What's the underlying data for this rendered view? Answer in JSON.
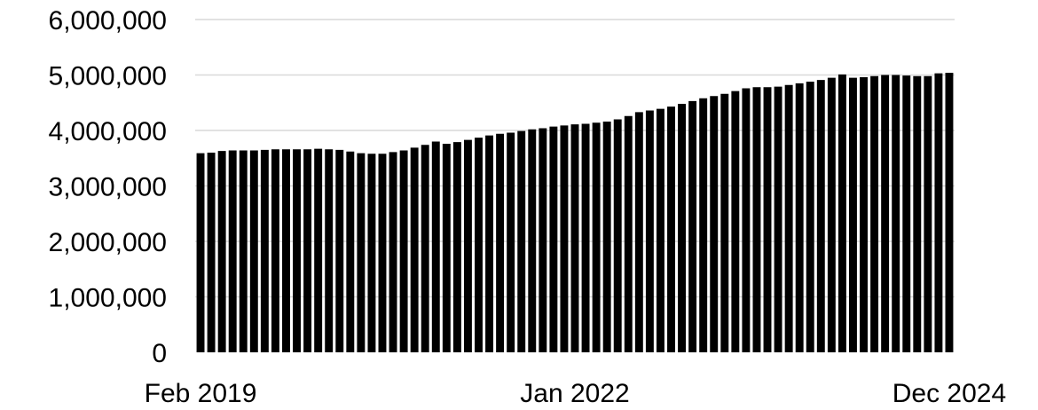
{
  "chart_data": {
    "type": "bar",
    "title": "",
    "xlabel": "",
    "ylabel": "",
    "ylim": [
      0,
      6000000
    ],
    "yticks": [
      {
        "value": 0,
        "label": "0"
      },
      {
        "value": 1000000,
        "label": "1,000,000"
      },
      {
        "value": 2000000,
        "label": "2,000,000"
      },
      {
        "value": 3000000,
        "label": "3,000,000"
      },
      {
        "value": 4000000,
        "label": "4,000,000"
      },
      {
        "value": 5000000,
        "label": "5,000,000"
      },
      {
        "value": 6000000,
        "label": "6,000,000"
      }
    ],
    "xtick_labels": [
      {
        "category": "2019-02",
        "label": "Feb 2019"
      },
      {
        "category": "2022-01",
        "label": "Jan 2022"
      },
      {
        "category": "2024-12",
        "label": "Dec 2024"
      }
    ],
    "grid": true,
    "legend": "none",
    "bar_color": "#000000",
    "grid_color": "#d9d9d9",
    "categories": [
      "2019-02",
      "2019-03",
      "2019-04",
      "2019-05",
      "2019-06",
      "2019-07",
      "2019-08",
      "2019-09",
      "2019-10",
      "2019-11",
      "2019-12",
      "2020-01",
      "2020-02",
      "2020-03",
      "2020-04",
      "2020-05",
      "2020-06",
      "2020-07",
      "2020-08",
      "2020-09",
      "2020-10",
      "2020-11",
      "2020-12",
      "2021-01",
      "2021-02",
      "2021-03",
      "2021-04",
      "2021-05",
      "2021-06",
      "2021-07",
      "2021-08",
      "2021-09",
      "2021-10",
      "2021-11",
      "2021-12",
      "2022-01",
      "2022-02",
      "2022-03",
      "2022-04",
      "2022-05",
      "2022-06",
      "2022-07",
      "2022-08",
      "2022-09",
      "2022-10",
      "2022-11",
      "2022-12",
      "2023-01",
      "2023-02",
      "2023-03",
      "2023-04",
      "2023-05",
      "2023-06",
      "2023-07",
      "2023-08",
      "2023-09",
      "2023-10",
      "2023-11",
      "2023-12",
      "2024-01",
      "2024-02",
      "2024-03",
      "2024-04",
      "2024-05",
      "2024-06",
      "2024-07",
      "2024-08",
      "2024-09",
      "2024-10",
      "2024-11",
      "2024-12"
    ],
    "values": [
      3590000,
      3600000,
      3630000,
      3640000,
      3640000,
      3640000,
      3650000,
      3660000,
      3660000,
      3660000,
      3660000,
      3670000,
      3660000,
      3650000,
      3620000,
      3590000,
      3580000,
      3580000,
      3610000,
      3640000,
      3690000,
      3740000,
      3800000,
      3760000,
      3790000,
      3830000,
      3870000,
      3910000,
      3940000,
      3960000,
      3990000,
      4020000,
      4040000,
      4070000,
      4090000,
      4110000,
      4120000,
      4140000,
      4160000,
      4200000,
      4260000,
      4330000,
      4360000,
      4390000,
      4430000,
      4480000,
      4530000,
      4580000,
      4620000,
      4660000,
      4710000,
      4760000,
      4780000,
      4780000,
      4790000,
      4820000,
      4850000,
      4880000,
      4910000,
      4950000,
      5010000,
      4950000,
      4960000,
      4980000,
      5000000,
      5000000,
      4990000,
      4980000,
      4980000,
      5030000,
      5040000
    ],
    "last_bar_value": 5040000
  }
}
